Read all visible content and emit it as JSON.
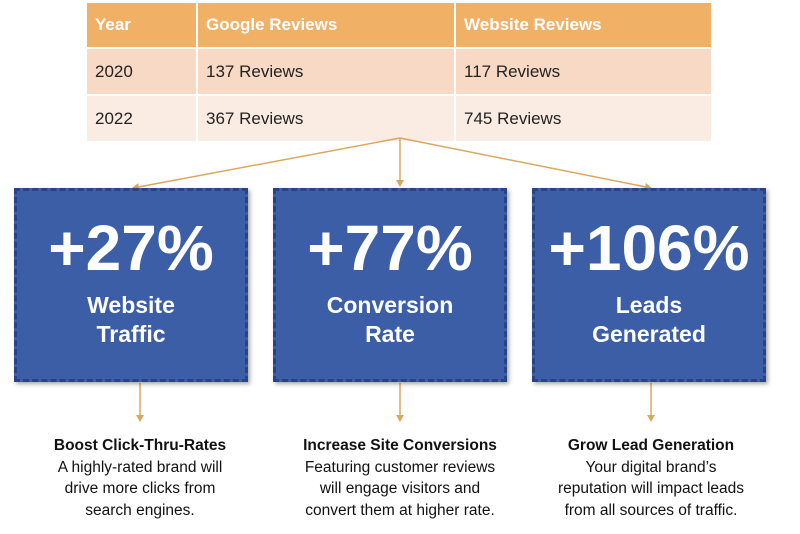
{
  "table": {
    "headers": [
      "Year",
      "Google Reviews",
      "Website Reviews"
    ],
    "rows": [
      [
        "2020",
        "137 Reviews",
        "117 Reviews"
      ],
      [
        "2022",
        "367 Reviews",
        "745 Reviews"
      ]
    ]
  },
  "stats": [
    {
      "value": "+27%",
      "label_line1": "Website",
      "label_line2": "Traffic"
    },
    {
      "value": "+77%",
      "label_line1": "Conversion",
      "label_line2": "Rate"
    },
    {
      "value": "+106%",
      "label_line1": "Leads",
      "label_line2": "Generated"
    }
  ],
  "captions": [
    {
      "heading": "Boost Click-Thru-Rates",
      "lines": [
        "A highly-rated brand will",
        "drive more clicks from",
        "search engines."
      ]
    },
    {
      "heading": "Increase Site Conversions",
      "lines": [
        "Featuring customer reviews",
        "will engage visitors and",
        "convert them at higher rate."
      ]
    },
    {
      "heading": "Grow Lead Generation",
      "lines": [
        "Your digital brand’s",
        "reputation will impact leads",
        "from all sources of traffic."
      ]
    }
  ],
  "colors": {
    "header_bg": "#f0b066",
    "row1_bg": "#f7d9c6",
    "row2_bg": "#fbece3",
    "box_bg": "#3b5ea6",
    "connector": "#d9a860"
  }
}
